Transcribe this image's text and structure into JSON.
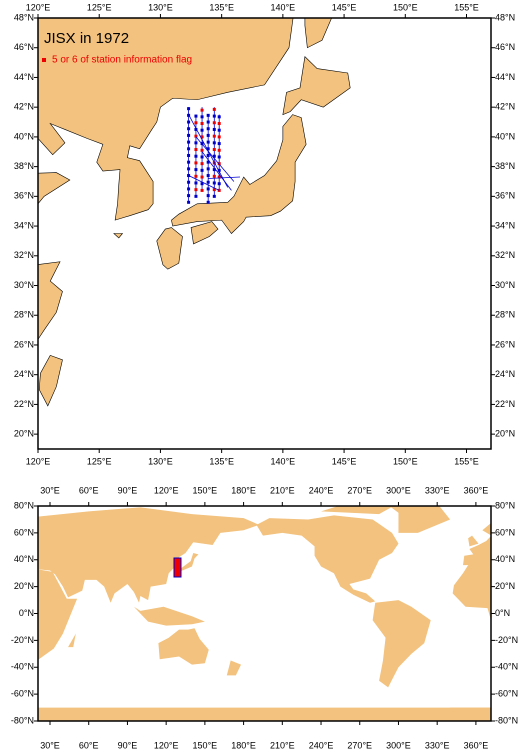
{
  "top_map": {
    "title": "JISX in 1972",
    "legend": "5 or 6 of station information flag",
    "lon_labels": [
      "120°E",
      "125°E",
      "130°E",
      "135°E",
      "140°E",
      "145°E",
      "150°E",
      "155°E"
    ],
    "lat_labels": [
      "20°N",
      "22°N",
      "24°N",
      "26°N",
      "28°N",
      "30°N",
      "32°N",
      "34°N",
      "36°N",
      "38°N",
      "40°N",
      "42°N",
      "44°N",
      "46°N",
      "48°N"
    ]
  },
  "bottom_map": {
    "lon_labels": [
      "30°E",
      "60°E",
      "90°E",
      "120°E",
      "150°E",
      "180°E",
      "210°E",
      "240°E",
      "270°E",
      "300°E",
      "330°E",
      "360°E"
    ],
    "lat_labels": [
      "80°N",
      "60°N",
      "40°N",
      "20°N",
      "0°N",
      "-20°N",
      "-40°N",
      "-60°N",
      "-80°N"
    ]
  }
}
